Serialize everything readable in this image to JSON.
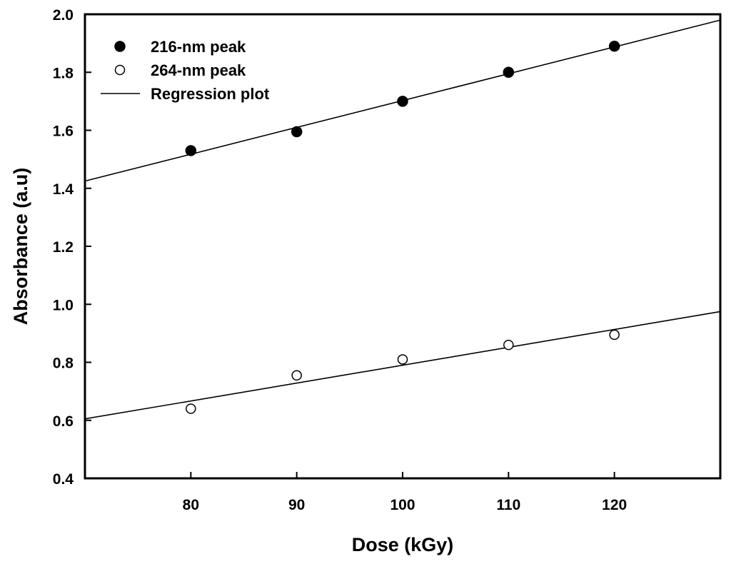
{
  "chart_data": {
    "type": "scatter",
    "title": "",
    "xlabel": "Dose (kGy)",
    "ylabel": "Absorbance (a.u)",
    "xlim": [
      70,
      130
    ],
    "ylim": [
      0.4,
      2.0
    ],
    "xticks": [
      80,
      90,
      100,
      110,
      120
    ],
    "xtick_labels": [
      "80",
      "90",
      "100",
      "110",
      "120"
    ],
    "yticks": [
      0.4,
      0.6,
      0.8,
      1.0,
      1.2,
      1.4,
      1.6,
      1.8,
      2.0
    ],
    "ytick_labels": [
      "0.4",
      "0.6",
      "0.8",
      "1.0",
      "1.2",
      "1.4",
      "1.6",
      "1.8",
      "2.0"
    ],
    "grid": false,
    "legend_position": "top-left",
    "series": [
      {
        "name": "216-nm peak",
        "marker": "filled-circle",
        "color": "#000000",
        "x": [
          80,
          90,
          100,
          110,
          120
        ],
        "y": [
          1.53,
          1.595,
          1.7,
          1.8,
          1.89
        ]
      },
      {
        "name": "264-nm peak",
        "marker": "open-circle",
        "color": "#000000",
        "x": [
          80,
          90,
          100,
          110,
          120
        ],
        "y": [
          0.64,
          0.755,
          0.81,
          0.86,
          0.895
        ]
      }
    ],
    "regression": {
      "name": "Regression plot",
      "lines": [
        {
          "series": "216-nm peak",
          "x": [
            70,
            130
          ],
          "y": [
            1.425,
            1.98
          ]
        },
        {
          "series": "264-nm peak",
          "x": [
            70,
            130
          ],
          "y": [
            0.605,
            0.975
          ]
        }
      ]
    }
  }
}
